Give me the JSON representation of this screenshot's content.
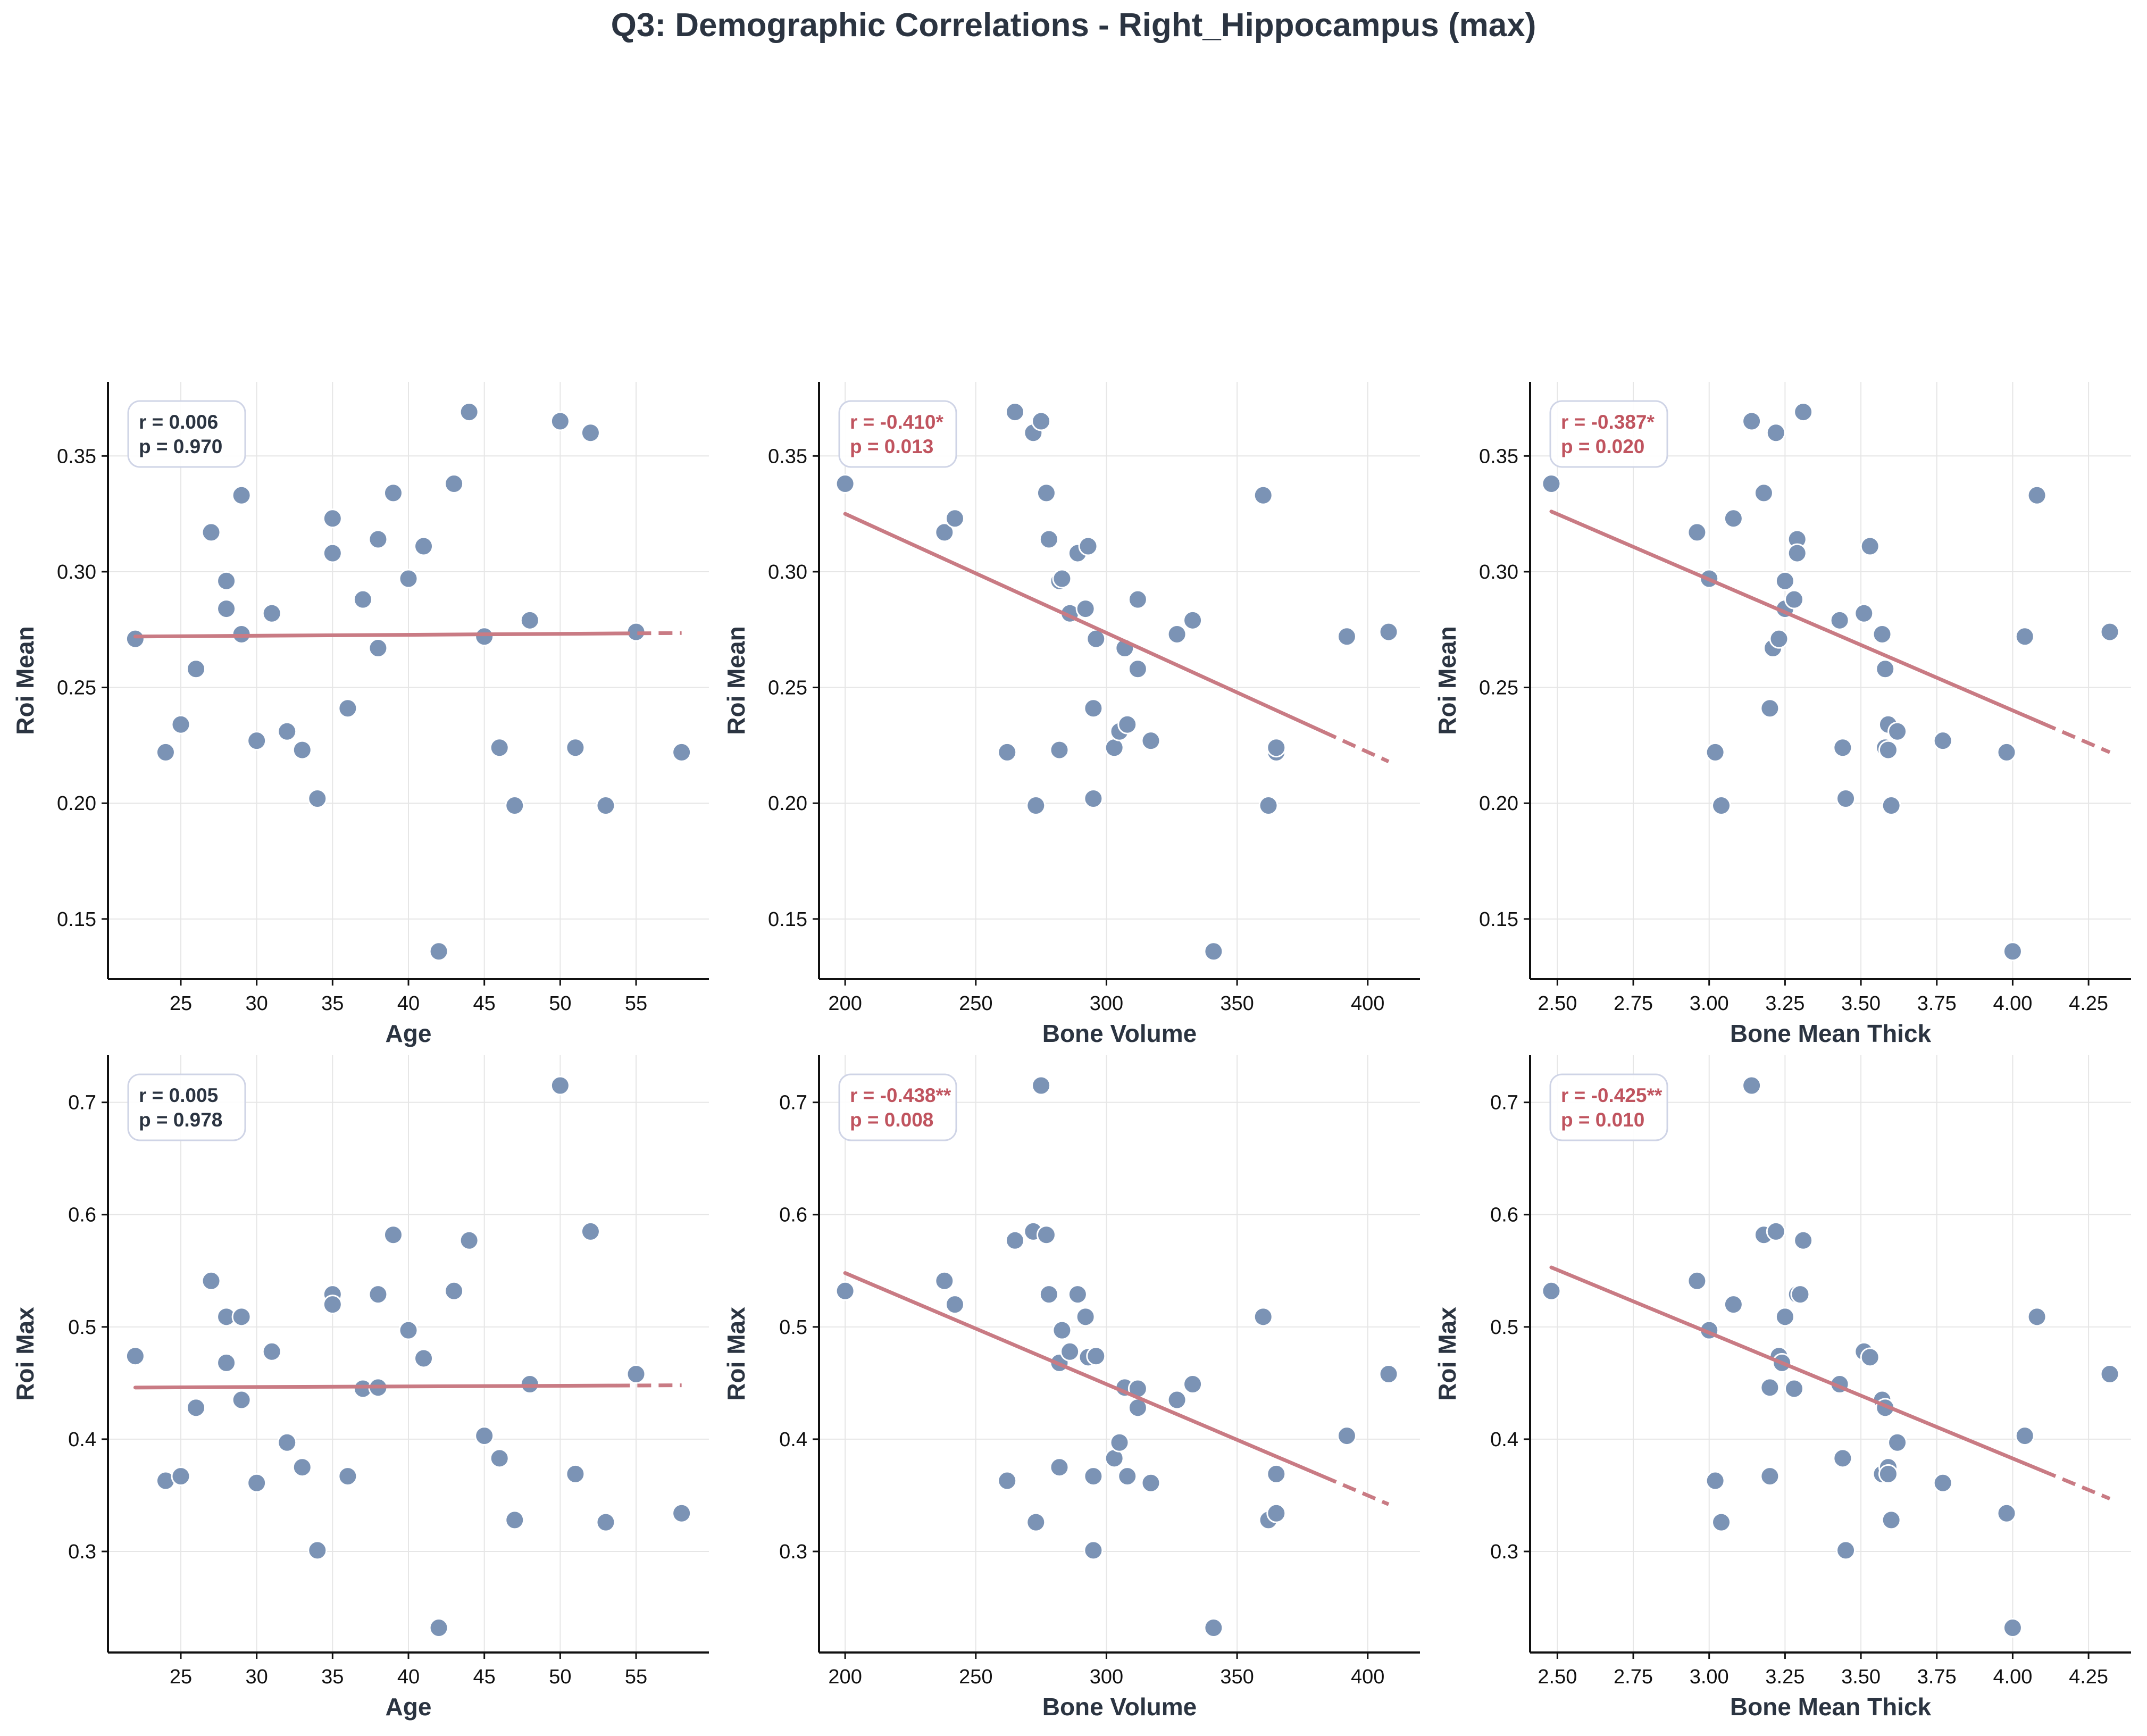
{
  "suptitle": "Q3: Demographic Correlations - Right_Hippocampus (max)",
  "colors": {
    "point": "#7b93b5",
    "point_edge": "#ffffff",
    "trend": "#c97b84",
    "significant_text": "#c0545f",
    "nonsignificant_text": "#2b3441",
    "grid": "#e6e6e6",
    "stat_box_border": "#cfd4e6"
  },
  "chart_data": [
    {
      "type": "scatter",
      "xlabel": "Age",
      "ylabel": "Roi Mean",
      "xlim": [
        20.2,
        59.8
      ],
      "ylim": [
        0.124,
        0.382
      ],
      "xticks": [
        25,
        30,
        35,
        40,
        45,
        50,
        55
      ],
      "yticks": [
        0.15,
        0.2,
        0.25,
        0.3,
        0.35
      ],
      "xtick_labels": [
        "25",
        "30",
        "35",
        "40",
        "45",
        "50",
        "55"
      ],
      "ytick_labels": [
        "0.15",
        "0.20",
        "0.25",
        "0.30",
        "0.35"
      ],
      "stats": {
        "r": "r = 0.006",
        "p": "p = 0.970",
        "significant": false
      },
      "trend": {
        "x0": 22,
        "y0": 0.272,
        "x1": 58,
        "y1": 0.2735
      },
      "points": [
        [
          22,
          0.271
        ],
        [
          24,
          0.222
        ],
        [
          25,
          0.234
        ],
        [
          26,
          0.258
        ],
        [
          27,
          0.317
        ],
        [
          28,
          0.296
        ],
        [
          28,
          0.284
        ],
        [
          29,
          0.333
        ],
        [
          29,
          0.273
        ],
        [
          30,
          0.227
        ],
        [
          31,
          0.282
        ],
        [
          32,
          0.231
        ],
        [
          33,
          0.223
        ],
        [
          34,
          0.202
        ],
        [
          35,
          0.323
        ],
        [
          35,
          0.308
        ],
        [
          36,
          0.241
        ],
        [
          37,
          0.288
        ],
        [
          38,
          0.314
        ],
        [
          38,
          0.267
        ],
        [
          39,
          0.334
        ],
        [
          40,
          0.297
        ],
        [
          41,
          0.311
        ],
        [
          42,
          0.136
        ],
        [
          43,
          0.338
        ],
        [
          44,
          0.369
        ],
        [
          45,
          0.272
        ],
        [
          46,
          0.224
        ],
        [
          47,
          0.199
        ],
        [
          48,
          0.279
        ],
        [
          50,
          0.365
        ],
        [
          51,
          0.224
        ],
        [
          52,
          0.36
        ],
        [
          53,
          0.199
        ],
        [
          55,
          0.274
        ],
        [
          58,
          0.222
        ]
      ]
    },
    {
      "type": "scatter",
      "xlabel": "Bone Volume",
      "ylabel": "Roi Mean",
      "xlim": [
        190,
        420
      ],
      "ylim": [
        0.124,
        0.382
      ],
      "xticks": [
        200,
        250,
        300,
        350,
        400
      ],
      "yticks": [
        0.15,
        0.2,
        0.25,
        0.3,
        0.35
      ],
      "xtick_labels": [
        "200",
        "250",
        "300",
        "350",
        "400"
      ],
      "ytick_labels": [
        "0.15",
        "0.20",
        "0.25",
        "0.30",
        "0.35"
      ],
      "stats": {
        "r": "r = -0.410*",
        "p": "p = 0.013",
        "significant": true
      },
      "trend": {
        "x0": 200,
        "y0": 0.325,
        "x1": 408,
        "y1": 0.218
      },
      "points": [
        [
          200,
          0.338
        ],
        [
          238,
          0.317
        ],
        [
          242,
          0.323
        ],
        [
          262,
          0.222
        ],
        [
          265,
          0.369
        ],
        [
          272,
          0.36
        ],
        [
          273,
          0.199
        ],
        [
          275,
          0.365
        ],
        [
          277,
          0.334
        ],
        [
          278,
          0.314
        ],
        [
          282,
          0.223
        ],
        [
          282,
          0.296
        ],
        [
          283,
          0.297
        ],
        [
          286,
          0.282
        ],
        [
          289,
          0.308
        ],
        [
          292,
          0.284
        ],
        [
          293,
          0.311
        ],
        [
          295,
          0.202
        ],
        [
          295,
          0.241
        ],
        [
          296,
          0.271
        ],
        [
          303,
          0.224
        ],
        [
          305,
          0.231
        ],
        [
          307,
          0.267
        ],
        [
          308,
          0.234
        ],
        [
          312,
          0.288
        ],
        [
          312,
          0.258
        ],
        [
          317,
          0.227
        ],
        [
          327,
          0.273
        ],
        [
          333,
          0.279
        ],
        [
          341,
          0.136
        ],
        [
          360,
          0.333
        ],
        [
          362,
          0.199
        ],
        [
          365,
          0.222
        ],
        [
          365,
          0.224
        ],
        [
          392,
          0.272
        ],
        [
          408,
          0.274
        ]
      ]
    },
    {
      "type": "scatter",
      "xlabel": "Bone Mean Thick",
      "ylabel": "Roi Mean",
      "xlim": [
        2.41,
        4.39
      ],
      "ylim": [
        0.124,
        0.382
      ],
      "xticks": [
        2.5,
        2.75,
        3.0,
        3.25,
        3.5,
        3.75,
        4.0,
        4.25
      ],
      "yticks": [
        0.15,
        0.2,
        0.25,
        0.3,
        0.35
      ],
      "xtick_labels": [
        "2.50",
        "2.75",
        "3.00",
        "3.25",
        "3.50",
        "3.75",
        "4.00",
        "4.25"
      ],
      "ytick_labels": [
        "0.15",
        "0.20",
        "0.25",
        "0.30",
        "0.35"
      ],
      "stats": {
        "r": "r = -0.387*",
        "p": "p = 0.020",
        "significant": true
      },
      "trend": {
        "x0": 2.48,
        "y0": 0.326,
        "x1": 4.32,
        "y1": 0.222
      },
      "points": [
        [
          2.48,
          0.338
        ],
        [
          2.96,
          0.317
        ],
        [
          3.0,
          0.297
        ],
        [
          3.02,
          0.222
        ],
        [
          3.04,
          0.199
        ],
        [
          3.08,
          0.323
        ],
        [
          3.14,
          0.365
        ],
        [
          3.18,
          0.334
        ],
        [
          3.2,
          0.241
        ],
        [
          3.21,
          0.267
        ],
        [
          3.22,
          0.36
        ],
        [
          3.23,
          0.271
        ],
        [
          3.25,
          0.284
        ],
        [
          3.25,
          0.296
        ],
        [
          3.28,
          0.288
        ],
        [
          3.29,
          0.314
        ],
        [
          3.29,
          0.308
        ],
        [
          3.31,
          0.369
        ],
        [
          3.43,
          0.279
        ],
        [
          3.44,
          0.224
        ],
        [
          3.45,
          0.202
        ],
        [
          3.51,
          0.282
        ],
        [
          3.53,
          0.311
        ],
        [
          3.57,
          0.273
        ],
        [
          3.58,
          0.258
        ],
        [
          3.58,
          0.224
        ],
        [
          3.59,
          0.234
        ],
        [
          3.59,
          0.223
        ],
        [
          3.6,
          0.199
        ],
        [
          3.62,
          0.231
        ],
        [
          3.77,
          0.227
        ],
        [
          3.98,
          0.222
        ],
        [
          4.0,
          0.136
        ],
        [
          4.04,
          0.272
        ],
        [
          4.08,
          0.333
        ],
        [
          4.32,
          0.274
        ]
      ]
    },
    {
      "type": "scatter",
      "xlabel": "Age",
      "ylabel": "Roi Max",
      "xlim": [
        20.2,
        59.8
      ],
      "ylim": [
        0.21,
        0.742
      ],
      "xticks": [
        25,
        30,
        35,
        40,
        45,
        50,
        55
      ],
      "yticks": [
        0.3,
        0.4,
        0.5,
        0.6,
        0.7
      ],
      "xtick_labels": [
        "25",
        "30",
        "35",
        "40",
        "45",
        "50",
        "55"
      ],
      "ytick_labels": [
        "0.3",
        "0.4",
        "0.5",
        "0.6",
        "0.7"
      ],
      "stats": {
        "r": "r = 0.005",
        "p": "p = 0.978",
        "significant": false
      },
      "trend": {
        "x0": 22,
        "y0": 0.446,
        "x1": 58,
        "y1": 0.448
      },
      "points": [
        [
          22,
          0.474
        ],
        [
          24,
          0.363
        ],
        [
          25,
          0.367
        ],
        [
          26,
          0.428
        ],
        [
          27,
          0.541
        ],
        [
          28,
          0.509
        ],
        [
          28,
          0.468
        ],
        [
          29,
          0.509
        ],
        [
          29,
          0.435
        ],
        [
          30,
          0.361
        ],
        [
          31,
          0.478
        ],
        [
          32,
          0.397
        ],
        [
          33,
          0.375
        ],
        [
          34,
          0.301
        ],
        [
          35,
          0.529
        ],
        [
          35,
          0.52
        ],
        [
          36,
          0.367
        ],
        [
          37,
          0.445
        ],
        [
          38,
          0.529
        ],
        [
          38,
          0.446
        ],
        [
          39,
          0.582
        ],
        [
          40,
          0.497
        ],
        [
          41,
          0.472
        ],
        [
          42,
          0.232
        ],
        [
          43,
          0.532
        ],
        [
          44,
          0.577
        ],
        [
          45,
          0.403
        ],
        [
          46,
          0.383
        ],
        [
          47,
          0.328
        ],
        [
          48,
          0.449
        ],
        [
          50,
          0.715
        ],
        [
          51,
          0.369
        ],
        [
          52,
          0.585
        ],
        [
          53,
          0.326
        ],
        [
          55,
          0.458
        ],
        [
          58,
          0.334
        ]
      ]
    },
    {
      "type": "scatter",
      "xlabel": "Bone Volume",
      "ylabel": "Roi Max",
      "xlim": [
        190,
        420
      ],
      "ylim": [
        0.21,
        0.742
      ],
      "xticks": [
        200,
        250,
        300,
        350,
        400
      ],
      "yticks": [
        0.3,
        0.4,
        0.5,
        0.6,
        0.7
      ],
      "xtick_labels": [
        "200",
        "250",
        "300",
        "350",
        "400"
      ],
      "ytick_labels": [
        "0.3",
        "0.4",
        "0.5",
        "0.6",
        "0.7"
      ],
      "stats": {
        "r": "r = -0.438**",
        "p": "p = 0.008",
        "significant": true
      },
      "trend": {
        "x0": 200,
        "y0": 0.548,
        "x1": 408,
        "y1": 0.342
      },
      "points": [
        [
          200,
          0.532
        ],
        [
          238,
          0.541
        ],
        [
          242,
          0.52
        ],
        [
          262,
          0.363
        ],
        [
          265,
          0.577
        ],
        [
          272,
          0.585
        ],
        [
          273,
          0.326
        ],
        [
          275,
          0.715
        ],
        [
          277,
          0.582
        ],
        [
          278,
          0.529
        ],
        [
          282,
          0.468
        ],
        [
          282,
          0.375
        ],
        [
          283,
          0.497
        ],
        [
          286,
          0.478
        ],
        [
          289,
          0.529
        ],
        [
          292,
          0.509
        ],
        [
          293,
          0.473
        ],
        [
          295,
          0.367
        ],
        [
          295,
          0.301
        ],
        [
          296,
          0.474
        ],
        [
          303,
          0.383
        ],
        [
          305,
          0.397
        ],
        [
          307,
          0.446
        ],
        [
          308,
          0.367
        ],
        [
          312,
          0.445
        ],
        [
          312,
          0.428
        ],
        [
          317,
          0.361
        ],
        [
          327,
          0.435
        ],
        [
          333,
          0.449
        ],
        [
          341,
          0.232
        ],
        [
          360,
          0.509
        ],
        [
          362,
          0.328
        ],
        [
          365,
          0.369
        ],
        [
          365,
          0.334
        ],
        [
          392,
          0.403
        ],
        [
          408,
          0.458
        ]
      ]
    },
    {
      "type": "scatter",
      "xlabel": "Bone Mean Thick",
      "ylabel": "Roi Max",
      "xlim": [
        2.41,
        4.39
      ],
      "ylim": [
        0.21,
        0.742
      ],
      "xticks": [
        2.5,
        2.75,
        3.0,
        3.25,
        3.5,
        3.75,
        4.0,
        4.25
      ],
      "yticks": [
        0.3,
        0.4,
        0.5,
        0.6,
        0.7
      ],
      "xtick_labels": [
        "2.50",
        "2.75",
        "3.00",
        "3.25",
        "3.50",
        "3.75",
        "4.00",
        "4.25"
      ],
      "ytick_labels": [
        "0.3",
        "0.4",
        "0.5",
        "0.6",
        "0.7"
      ],
      "stats": {
        "r": "r = -0.425**",
        "p": "p = 0.010",
        "significant": true
      },
      "trend": {
        "x0": 2.48,
        "y0": 0.553,
        "x1": 4.32,
        "y1": 0.347
      },
      "points": [
        [
          2.48,
          0.532
        ],
        [
          2.96,
          0.541
        ],
        [
          3.0,
          0.497
        ],
        [
          3.02,
          0.363
        ],
        [
          3.04,
          0.326
        ],
        [
          3.08,
          0.52
        ],
        [
          3.14,
          0.715
        ],
        [
          3.18,
          0.582
        ],
        [
          3.2,
          0.367
        ],
        [
          3.2,
          0.446
        ],
        [
          3.22,
          0.585
        ],
        [
          3.23,
          0.474
        ],
        [
          3.24,
          0.468
        ],
        [
          3.25,
          0.509
        ],
        [
          3.28,
          0.445
        ],
        [
          3.29,
          0.529
        ],
        [
          3.3,
          0.529
        ],
        [
          3.31,
          0.577
        ],
        [
          3.43,
          0.449
        ],
        [
          3.44,
          0.383
        ],
        [
          3.45,
          0.301
        ],
        [
          3.51,
          0.478
        ],
        [
          3.53,
          0.473
        ],
        [
          3.57,
          0.435
        ],
        [
          3.57,
          0.369
        ],
        [
          3.58,
          0.428
        ],
        [
          3.59,
          0.375
        ],
        [
          3.59,
          0.369
        ],
        [
          3.6,
          0.328
        ],
        [
          3.62,
          0.397
        ],
        [
          3.77,
          0.361
        ],
        [
          3.98,
          0.334
        ],
        [
          4.0,
          0.232
        ],
        [
          4.04,
          0.403
        ],
        [
          4.08,
          0.509
        ],
        [
          4.32,
          0.458
        ]
      ]
    }
  ]
}
